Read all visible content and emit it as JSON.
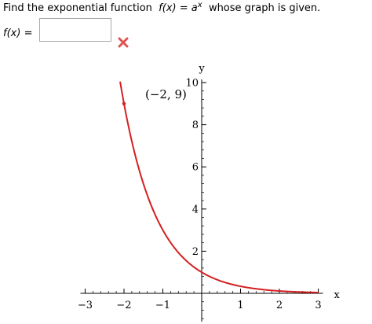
{
  "question": {
    "prefix": "Find the exponential function",
    "func_lhs": "f(x)",
    "equals": "=",
    "base": "a",
    "exponent": "x",
    "suffix": "whose graph is given."
  },
  "answer": {
    "label": "f(x)",
    "equals": "=",
    "value": "",
    "status_icon": "x-mark-icon",
    "status_color": "#e05252"
  },
  "graph": {
    "point_label": "(−2, 9)",
    "x_axis_label": "x",
    "y_axis_label": "y",
    "curve_color": "#d42020"
  },
  "chart_data": {
    "type": "line",
    "function": "f(x) = 3^(-x)",
    "series": [
      {
        "x": [
          -2.1,
          -2,
          -1.5,
          -1,
          -0.5,
          0,
          0.5,
          1,
          1.5,
          2,
          2.5,
          3
        ],
        "y": [
          10.05,
          9,
          5.2,
          3,
          1.73,
          1,
          0.58,
          0.33,
          0.19,
          0.11,
          0.06,
          0.04
        ]
      }
    ],
    "highlighted_point": {
      "x": -2,
      "y": 9,
      "label": "(−2, 9)"
    },
    "xlabel": "x",
    "ylabel": "y",
    "xlim": [
      -3,
      3
    ],
    "ylim": [
      0,
      10
    ],
    "x_ticks": [
      -3,
      -2,
      -1,
      1,
      2,
      3
    ],
    "x_tick_labels": [
      "−3",
      "−2",
      "−1",
      "1",
      "2",
      "3"
    ],
    "y_ticks": [
      2,
      4,
      6,
      8,
      10
    ],
    "y_tick_labels": [
      "2",
      "4",
      "6",
      "8",
      "10"
    ],
    "grid": false
  }
}
